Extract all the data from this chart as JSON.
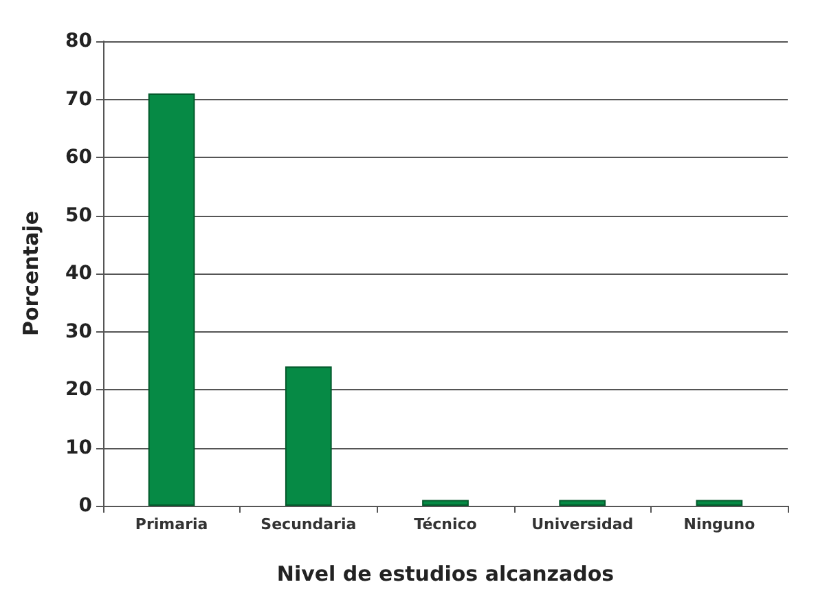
{
  "chart_data": {
    "type": "bar",
    "xlabel": "Nivel de estudios alcanzados",
    "ylabel": "Porcentaje",
    "categories": [
      "Primaria",
      "Secundaria",
      "Técnico",
      "Universidad",
      "Ninguno"
    ],
    "values": [
      71,
      24,
      1,
      1,
      1
    ],
    "color": "#068a45",
    "ylim": [
      0,
      80
    ],
    "yticks": [
      0,
      10,
      20,
      30,
      40,
      50,
      60,
      70,
      80
    ],
    "grid": "y"
  }
}
